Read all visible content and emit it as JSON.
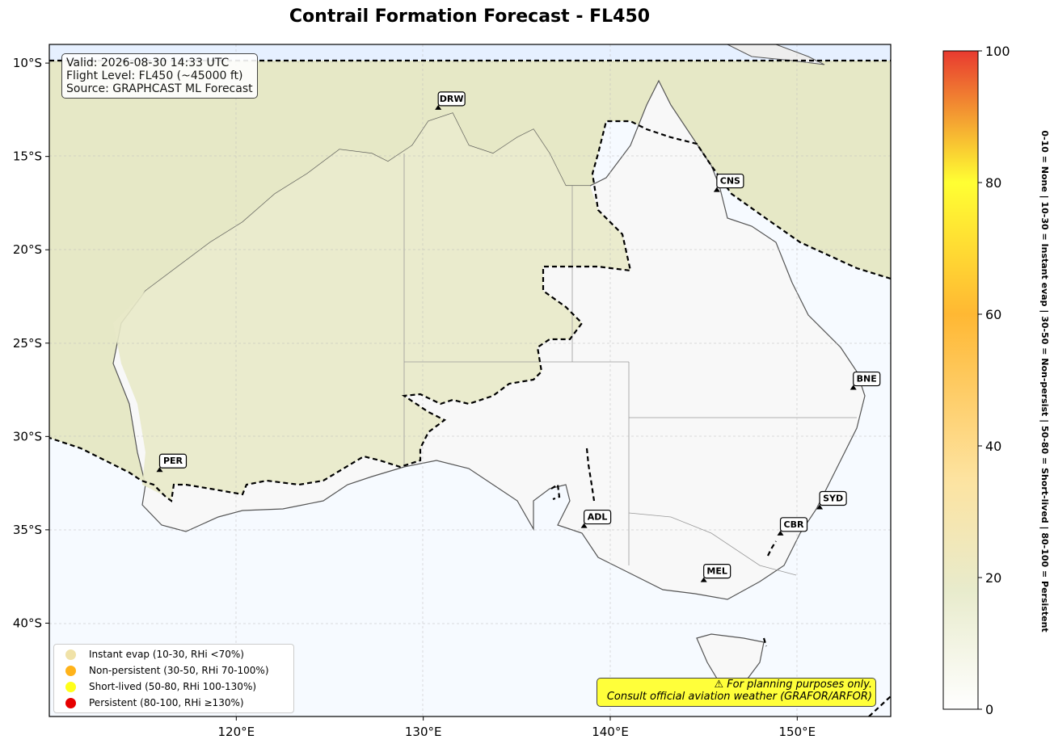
{
  "title": "Contrail Formation Forecast - FL450",
  "info": {
    "valid": "Valid: 2026-08-30 14:33 UTC",
    "flight_level": "Flight Level: FL450 (~45000 ft)",
    "source": "Source: GRAPHCAST ML Forecast"
  },
  "map": {
    "lon_range": [
      110,
      155
    ],
    "lat_range": [
      -45,
      -9
    ],
    "lon_ticks": [
      "120°E",
      "130°E",
      "140°E",
      "150°E"
    ],
    "lat_ticks": [
      "10°S",
      "15°S",
      "20°S",
      "25°S",
      "30°S",
      "35°S",
      "40°S"
    ]
  },
  "cities": [
    {
      "code": "DRW",
      "lon": 130.8,
      "lat": -12.5
    },
    {
      "code": "CNS",
      "lon": 145.7,
      "lat": -16.9
    },
    {
      "code": "BNE",
      "lon": 153.0,
      "lat": -27.5
    },
    {
      "code": "PER",
      "lon": 115.9,
      "lat": -31.9
    },
    {
      "code": "SYD",
      "lon": 151.2,
      "lat": -33.9
    },
    {
      "code": "ADL",
      "lon": 138.6,
      "lat": -34.9
    },
    {
      "code": "CBR",
      "lon": 149.1,
      "lat": -35.3
    },
    {
      "code": "MEL",
      "lon": 145.0,
      "lat": -37.8
    }
  ],
  "legend": [
    {
      "label": "Instant evap (10-30, RHi <70%)",
      "color": "#f0e2a8"
    },
    {
      "label": "Non-persistent (30-50, RHi 70-100%)",
      "color": "#ffb31a"
    },
    {
      "label": "Short-lived (50-80, RHi 100-130%)",
      "color": "#ffff1a"
    },
    {
      "label": "Persistent (80-100, RHi ≥130%)",
      "color": "#e60000"
    }
  ],
  "warning": {
    "line1": "⚠ For planning purposes only.",
    "line2": "Consult official aviation weather (GRAFOR/ARFOR)"
  },
  "colorbar": {
    "min": 0,
    "max": 100,
    "ticks": [
      "0",
      "20",
      "40",
      "60",
      "80",
      "100"
    ],
    "label": "0-10 = None  |  10-30 = Instant evap  |  30-50 = Non-persist  |  50-80 = Short-lived  |  80-100 = Persistent"
  }
}
